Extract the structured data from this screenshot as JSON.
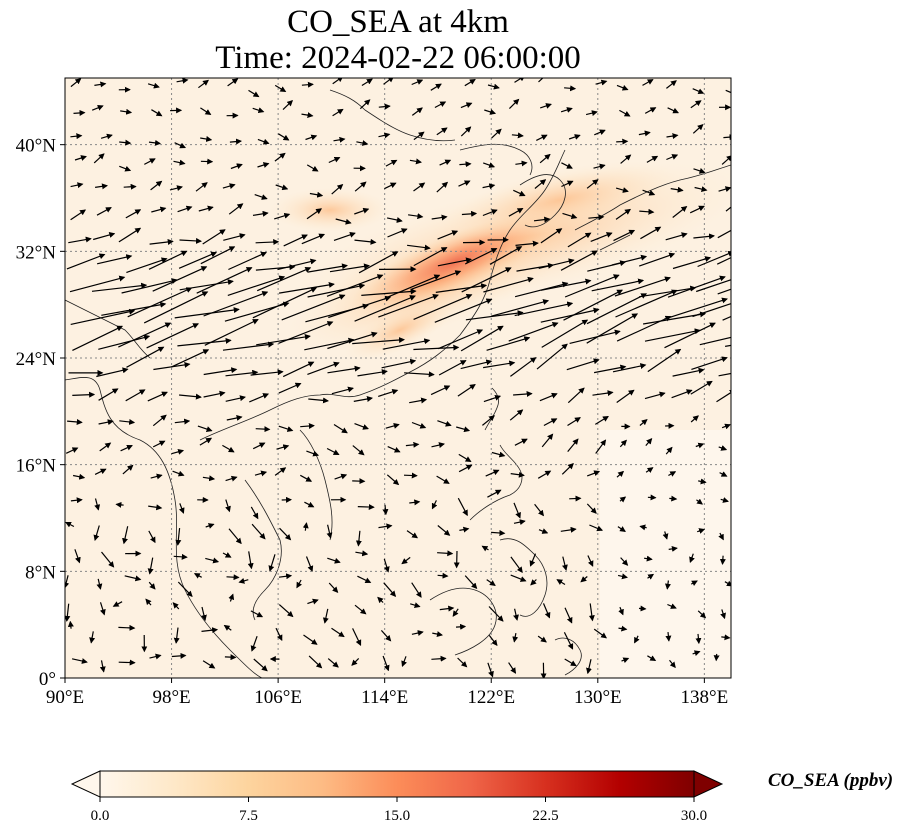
{
  "title_line1": "CO_SEA at 4km",
  "title_line2": "Time: 2024-02-22 06:00:00",
  "map": {
    "lon_range": [
      90,
      140
    ],
    "lat_range": [
      0,
      45
    ],
    "lon_ticks": [
      {
        "value": 90,
        "label": "90°E"
      },
      {
        "value": 98,
        "label": "98°E"
      },
      {
        "value": 106,
        "label": "106°E"
      },
      {
        "value": 114,
        "label": "114°E"
      },
      {
        "value": 122,
        "label": "122°E"
      },
      {
        "value": 130,
        "label": "130°E"
      },
      {
        "value": 138,
        "label": "138°E"
      }
    ],
    "lat_ticks": [
      {
        "value": 0,
        "label": "0°"
      },
      {
        "value": 8,
        "label": "8°N"
      },
      {
        "value": 16,
        "label": "16°N"
      },
      {
        "value": 24,
        "label": "24°N"
      },
      {
        "value": 32,
        "label": "32°N"
      },
      {
        "value": 40,
        "label": "40°N"
      }
    ],
    "gridlines": "dotted",
    "colormap": "OrRd",
    "vectors": "wind arrows (black)"
  },
  "colorbar": {
    "label": "CO_SEA (ppbv)",
    "min": 0,
    "max": 30,
    "extend": "both",
    "ticks": [
      "0.0",
      "7.5",
      "15.0",
      "22.5",
      "30.0"
    ],
    "colors": [
      "#fff7ec",
      "#fee8c8",
      "#fdd49e",
      "#fdbb84",
      "#fc8d59",
      "#ef6548",
      "#d7301f",
      "#b30000",
      "#7f0000"
    ]
  }
}
